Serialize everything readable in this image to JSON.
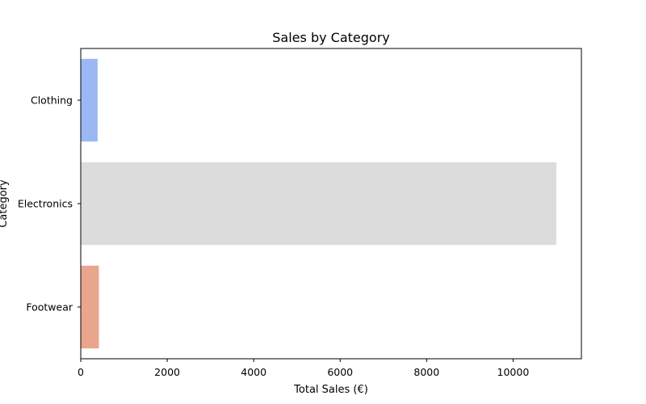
{
  "chart_data": {
    "type": "bar",
    "orientation": "horizontal",
    "title": "Sales by Category",
    "xlabel": "Total Sales (€)",
    "ylabel": "Category",
    "categories": [
      "Clothing",
      "Electronics",
      "Footwear"
    ],
    "values": [
      390,
      11000,
      420
    ],
    "colors": [
      "#9bb8f5",
      "#dcdcdc",
      "#e9a68d"
    ],
    "xlim": [
      0,
      11580
    ],
    "xticks": [
      0,
      2000,
      4000,
      6000,
      8000,
      10000
    ],
    "xtick_labels": [
      "0",
      "2000",
      "4000",
      "6000",
      "8000",
      "10000"
    ],
    "grid": false,
    "legend": "none"
  }
}
